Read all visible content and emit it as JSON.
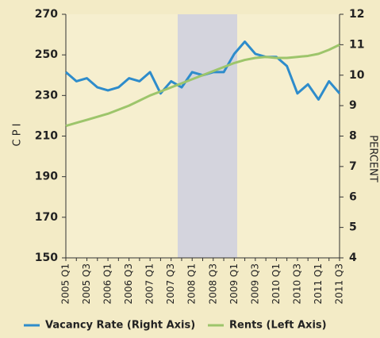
{
  "chart_data": {
    "type": "line",
    "categories": [
      "2005 Q1",
      null,
      "2005 Q3",
      null,
      "2006 Q1",
      null,
      "2006 Q3",
      null,
      "2007 Q1",
      null,
      "2007 Q3",
      null,
      "2008 Q1",
      null,
      "2008 Q3",
      null,
      "2009 Q1",
      null,
      "2009 Q3",
      null,
      "2010 Q1",
      null,
      "2010 Q3",
      null,
      "2011 Q1",
      null,
      "2011 Q3"
    ],
    "series": [
      {
        "name": "Vacancy Rate (Right Axis)",
        "color": "#2e8ccb",
        "axis": "y2",
        "values": [
          10.1,
          9.8,
          9.9,
          9.6,
          9.5,
          9.6,
          9.9,
          9.8,
          10.1,
          9.4,
          9.8,
          9.6,
          10.1,
          10.0,
          10.1,
          10.1,
          10.7,
          11.1,
          10.7,
          10.6,
          10.6,
          10.3,
          9.4,
          9.7,
          9.2,
          9.8,
          9.4
        ]
      },
      {
        "name": "Rents (Left Axis)",
        "color": "#9dc56b",
        "values": [
          215,
          216.5,
          218,
          219.5,
          221,
          223,
          225,
          227.5,
          230,
          232,
          234,
          236,
          238,
          240,
          242,
          244,
          246,
          247.5,
          248.5,
          249,
          248.5,
          248.5,
          249,
          249.5,
          250.5,
          252.5,
          255
        ]
      }
    ],
    "y_label": "C P I",
    "y2_label": "PERCENT",
    "ylim": [
      150,
      270
    ],
    "yticks": [
      150,
      170,
      190,
      210,
      230,
      250,
      270
    ],
    "y2lim": [
      4,
      12
    ],
    "y2ticks": [
      4,
      5,
      6,
      7,
      8,
      9,
      10,
      11,
      12
    ],
    "legend": "bottom"
  }
}
